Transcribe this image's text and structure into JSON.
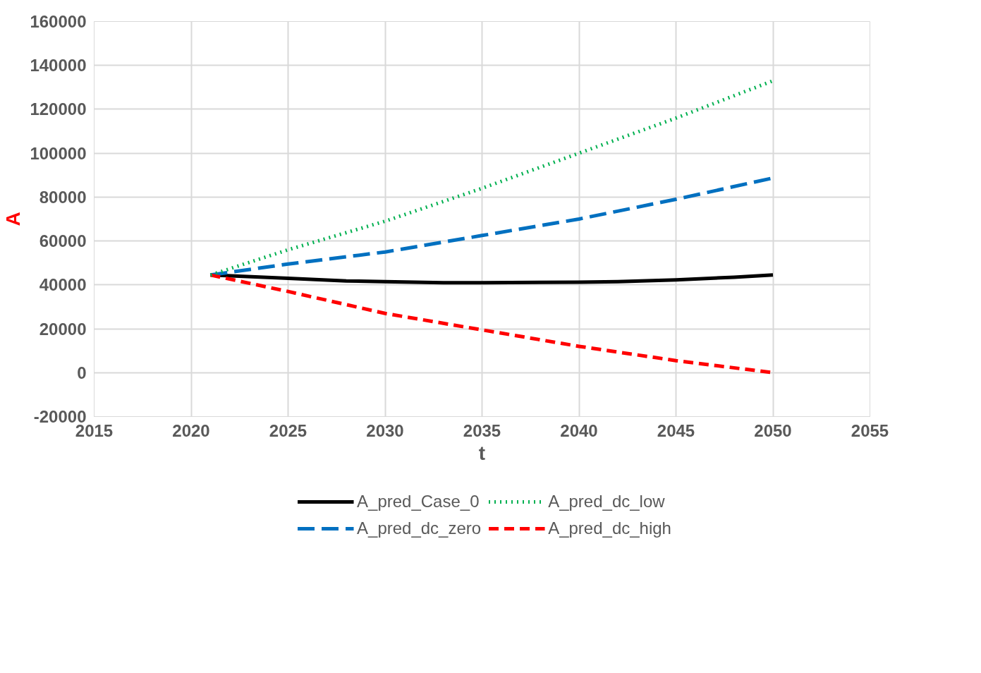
{
  "chart_data": {
    "type": "line",
    "xlabel": "t",
    "ylabel": "A",
    "xlim": [
      2015,
      2055
    ],
    "xticks": [
      2015,
      2020,
      2025,
      2030,
      2035,
      2040,
      2045,
      2050,
      2055
    ],
    "ylim": [
      -20000,
      160000
    ],
    "yticks": [
      -20000,
      0,
      20000,
      40000,
      60000,
      80000,
      100000,
      120000,
      140000,
      160000
    ],
    "grid": true,
    "legend": "bottom",
    "marker": "none",
    "series": [
      {
        "name": "A_pred_Case_0",
        "color": "#000000",
        "line_style": "solid",
        "x": [
          2021,
          2025,
          2028,
          2030,
          2033,
          2035,
          2040,
          2042,
          2045,
          2048,
          2050
        ],
        "values": [
          44500,
          43000,
          41800,
          41500,
          41000,
          41000,
          41200,
          41500,
          42300,
          43500,
          44500
        ]
      },
      {
        "name": "A_pred_dc_low",
        "color": "#00b050",
        "line_style": "dotted",
        "x": [
          2021,
          2025,
          2030,
          2035,
          2040,
          2045,
          2050
        ],
        "values": [
          44500,
          56000,
          69000,
          84000,
          100000,
          116000,
          133000
        ]
      },
      {
        "name": "A_pred_dc_zero",
        "color": "#0070c0",
        "line_style": "dashed",
        "x": [
          2021,
          2025,
          2030,
          2035,
          2040,
          2045,
          2050
        ],
        "values": [
          44500,
          49500,
          55000,
          62500,
          70000,
          79000,
          88700
        ]
      },
      {
        "name": "A_pred_dc_high",
        "color": "#ff0000",
        "line_style": "dashed",
        "x": [
          2021,
          2025,
          2030,
          2035,
          2040,
          2045,
          2050
        ],
        "values": [
          44500,
          37000,
          27000,
          19500,
          12000,
          5500,
          0
        ]
      }
    ]
  }
}
